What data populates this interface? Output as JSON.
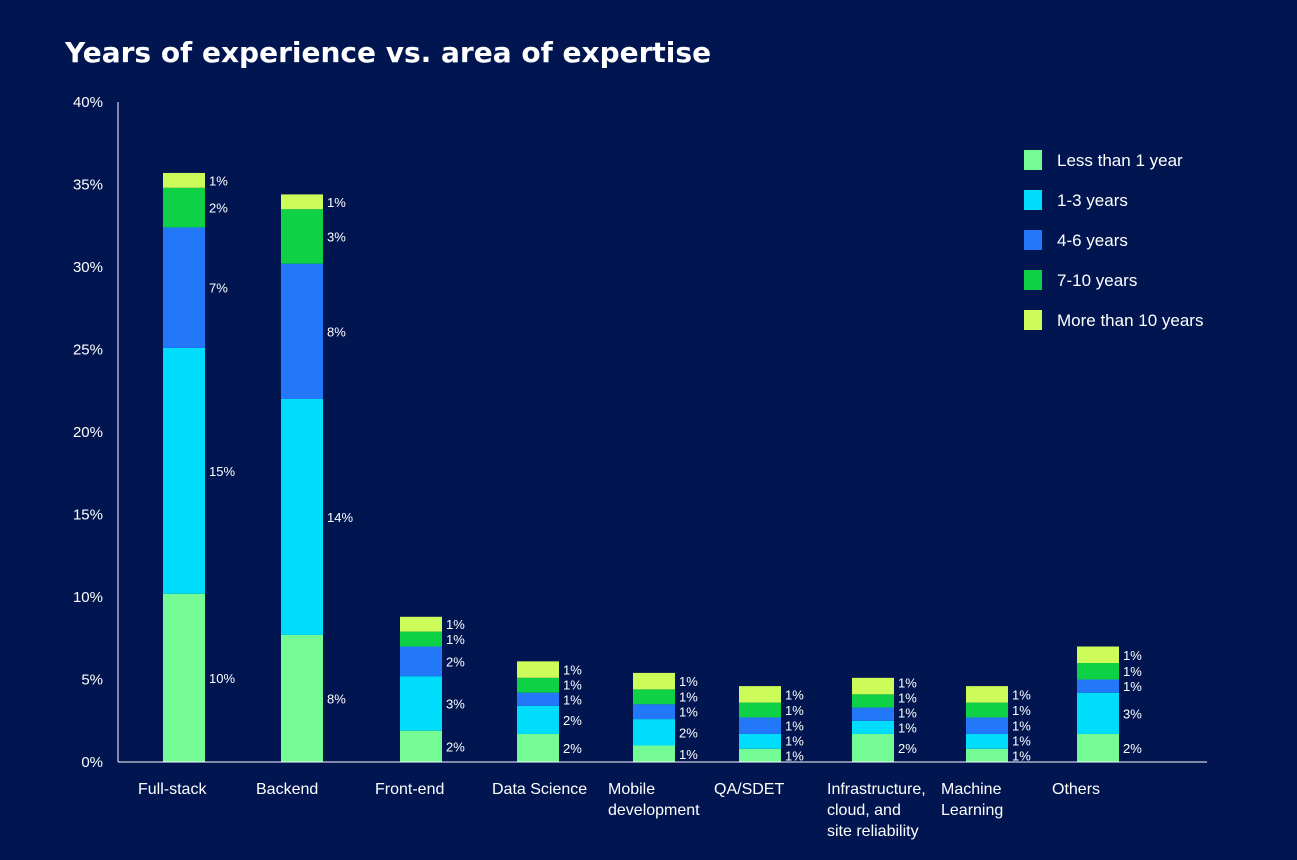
{
  "chart_data": {
    "type": "bar",
    "stacked": true,
    "title": "Years of experience vs. area of expertise",
    "xlabel": "",
    "ylabel": "",
    "ylim": [
      0,
      40
    ],
    "yticks": [
      "0%",
      "5%",
      "10%",
      "15%",
      "20%",
      "25%",
      "30%",
      "35%",
      "40%"
    ],
    "legend_position": "top-right",
    "categories": [
      [
        "Full-stack"
      ],
      [
        "Backend"
      ],
      [
        "Front-end"
      ],
      [
        "Data Science"
      ],
      [
        "Mobile",
        "development"
      ],
      [
        "QA/SDET"
      ],
      [
        "Infrastructure,",
        "cloud, and",
        "site reliability"
      ],
      [
        "Machine",
        "Learning"
      ],
      [
        "Others"
      ]
    ],
    "series": [
      {
        "name": "Less than 1 year",
        "color": "#74fb93",
        "values": [
          10.2,
          7.7,
          1.9,
          1.7,
          1.0,
          0.8,
          1.7,
          0.8,
          1.7
        ],
        "labels": [
          "10%",
          "8%",
          "2%",
          "2%",
          "1%",
          "1%",
          "2%",
          "1%",
          "2%"
        ]
      },
      {
        "name": "1-3 years",
        "color": "#00dcfb",
        "values": [
          14.9,
          14.3,
          3.3,
          1.7,
          1.6,
          0.9,
          0.8,
          0.9,
          2.5
        ],
        "labels": [
          "15%",
          "14%",
          "3%",
          "2%",
          "2%",
          "1%",
          "1%",
          "1%",
          "3%"
        ]
      },
      {
        "name": "4-6 years",
        "color": "#2378fa",
        "values": [
          7.3,
          8.2,
          1.8,
          0.8,
          0.9,
          1.0,
          0.8,
          1.0,
          0.8
        ],
        "labels": [
          "7%",
          "8%",
          "2%",
          "1%",
          "1%",
          "1%",
          "1%",
          "1%",
          "1%"
        ]
      },
      {
        "name": "7-10 years",
        "color": "#0fd145",
        "values": [
          2.4,
          3.3,
          0.9,
          0.9,
          0.9,
          0.9,
          0.8,
          0.9,
          1.0
        ],
        "labels": [
          "2%",
          "3%",
          "1%",
          "1%",
          "1%",
          "1%",
          "1%",
          "1%",
          "1%"
        ]
      },
      {
        "name": "More than 10 years",
        "color": "#ccfb5a",
        "values": [
          0.9,
          0.9,
          0.9,
          1.0,
          1.0,
          1.0,
          1.0,
          1.0,
          1.0
        ],
        "labels": [
          "1%",
          "1%",
          "1%",
          "1%",
          "1%",
          "1%",
          "1%",
          "1%",
          "1%"
        ]
      }
    ]
  }
}
